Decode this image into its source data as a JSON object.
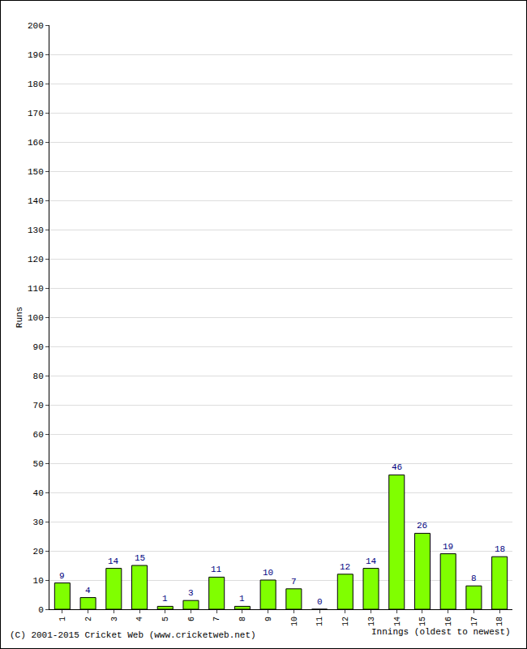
{
  "chart_data": {
    "type": "bar",
    "x_label": "Innings (oldest to newest)",
    "y_label": "Runs",
    "annotation": "(C) 2001-2015 Cricket Web (www.cricketweb.net)",
    "categories": [
      "1",
      "2",
      "3",
      "4",
      "5",
      "6",
      "7",
      "8",
      "9",
      "10",
      "11",
      "12",
      "13",
      "14",
      "15",
      "16",
      "17",
      "18"
    ],
    "values": [
      9,
      4,
      14,
      15,
      1,
      3,
      11,
      1,
      10,
      7,
      0,
      12,
      14,
      46,
      26,
      19,
      8,
      18
    ],
    "color": "#80ff00",
    "ylim": [
      0,
      200
    ],
    "yticks": [
      0,
      10,
      20,
      30,
      40,
      50,
      60,
      70,
      80,
      90,
      100,
      110,
      120,
      130,
      140,
      150,
      160,
      170,
      180,
      190,
      200
    ],
    "grid": true,
    "data_labels": true
  }
}
